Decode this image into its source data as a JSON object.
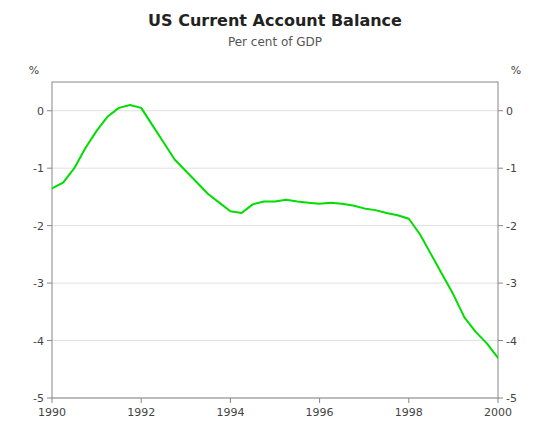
{
  "chart_data": {
    "type": "line",
    "title": "US Current Account Balance",
    "subtitle": "Per cent of GDP",
    "ylabel": "%",
    "y2label": "%",
    "x": [
      1990.0,
      1990.25,
      1990.5,
      1990.75,
      1991.0,
      1991.25,
      1991.5,
      1991.75,
      1992.0,
      1992.25,
      1992.5,
      1992.75,
      1993.0,
      1993.25,
      1993.5,
      1993.75,
      1994.0,
      1994.25,
      1994.5,
      1994.75,
      1995.0,
      1995.25,
      1995.5,
      1995.75,
      1996.0,
      1996.25,
      1996.5,
      1996.75,
      1997.0,
      1997.25,
      1997.5,
      1997.75,
      1998.0,
      1998.25,
      1998.5,
      1998.75,
      1999.0,
      1999.25,
      1999.5,
      1999.75,
      2000.0
    ],
    "values": [
      -1.35,
      -1.25,
      -1.0,
      -0.65,
      -0.35,
      -0.1,
      0.05,
      0.1,
      0.05,
      -0.25,
      -0.55,
      -0.85,
      -1.05,
      -1.25,
      -1.45,
      -1.6,
      -1.75,
      -1.78,
      -1.63,
      -1.58,
      -1.58,
      -1.55,
      -1.58,
      -1.6,
      -1.62,
      -1.6,
      -1.62,
      -1.65,
      -1.7,
      -1.73,
      -1.78,
      -1.82,
      -1.88,
      -2.15,
      -2.5,
      -2.85,
      -3.2,
      -3.6,
      -3.85,
      -4.05,
      -4.3
    ],
    "color": "#00dd00",
    "xlim": [
      1990,
      2000
    ],
    "ylim": [
      -5,
      0.5
    ],
    "y2lim": [
      -5,
      0.5
    ],
    "xticks": [
      1990,
      1992,
      1994,
      1996,
      1998,
      2000
    ],
    "yticks": [
      -5,
      -4,
      -3,
      -2,
      -1,
      0
    ],
    "y2ticks": [
      -5,
      -4,
      -3,
      -2,
      -1,
      0
    ],
    "grid": true
  }
}
